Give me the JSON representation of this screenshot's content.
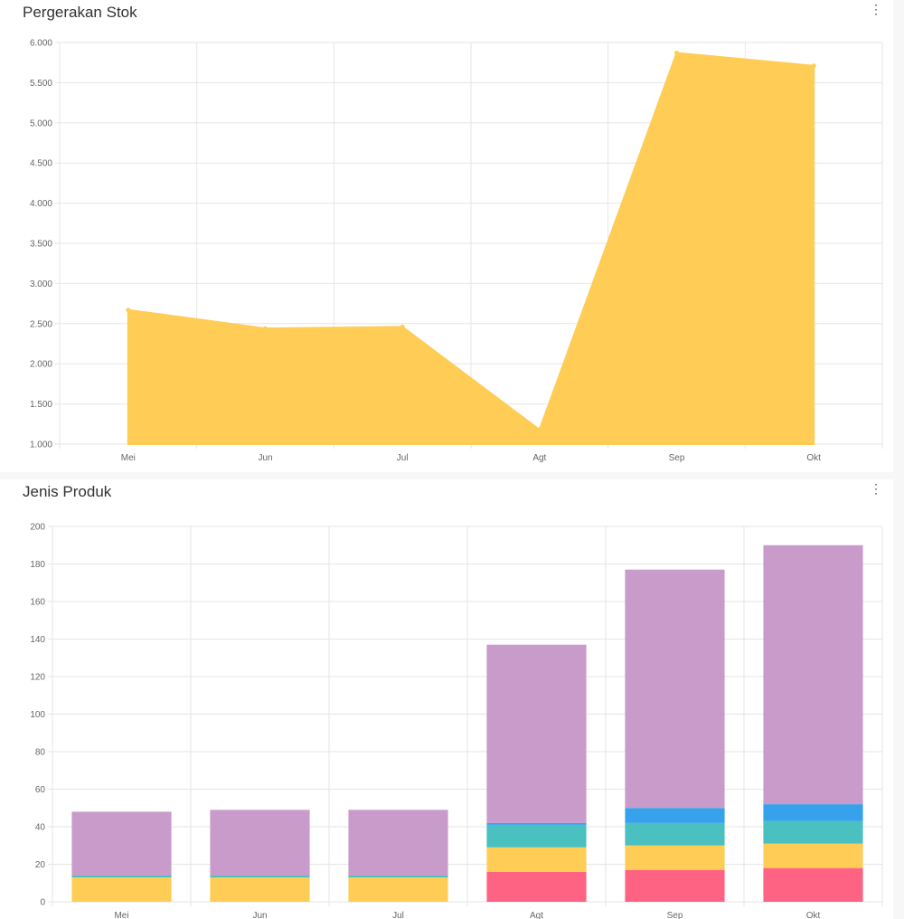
{
  "cards": [
    {
      "title": "Pergerakan Stok",
      "menu_icon": "more-vertical-icon"
    },
    {
      "title": "Jenis Produk",
      "menu_icon": "more-vertical-icon"
    }
  ],
  "chart_data": [
    {
      "type": "area",
      "title": "Pergerakan Stok",
      "categories": [
        "Mei",
        "Jun",
        "Jul",
        "Agt",
        "Sep",
        "Okt"
      ],
      "values": [
        2670,
        2440,
        2460,
        1180,
        5870,
        5710
      ],
      "ylim": [
        1000,
        6000
      ],
      "yticks": [
        1000,
        1500,
        2000,
        2500,
        3000,
        3500,
        4000,
        4500,
        5000,
        5500,
        6000
      ],
      "ytick_labels": [
        "1.000",
        "1.500",
        "2.000",
        "2.500",
        "3.000",
        "3.500",
        "4.000",
        "4.500",
        "5.000",
        "5.500",
        "6.000"
      ],
      "color": "#ffcc55",
      "grid": true
    },
    {
      "type": "bar",
      "stacked": true,
      "title": "Jenis Produk",
      "categories": [
        "Mei",
        "Jun",
        "Jul",
        "Agt",
        "Sep",
        "Okt"
      ],
      "series": [
        {
          "values": [
            0,
            0,
            0,
            16,
            17,
            18
          ],
          "color": "#ff6384"
        },
        {
          "values": [
            13,
            13,
            13,
            13,
            13,
            13
          ],
          "color": "#ffcd56"
        },
        {
          "values": [
            1,
            1,
            1,
            12,
            12,
            12
          ],
          "color": "#4bc0c0"
        },
        {
          "values": [
            0,
            0,
            0,
            1,
            8,
            9
          ],
          "color": "#36a2eb"
        },
        {
          "values": [
            34,
            35,
            35,
            95,
            127,
            138
          ],
          "color": "#c89bca"
        }
      ],
      "ylim": [
        0,
        200
      ],
      "yticks": [
        0,
        20,
        40,
        60,
        80,
        100,
        120,
        140,
        160,
        180,
        200
      ],
      "ytick_labels": [
        "0",
        "20",
        "40",
        "60",
        "80",
        "100",
        "120",
        "140",
        "160",
        "180",
        "200"
      ],
      "grid": true
    }
  ]
}
